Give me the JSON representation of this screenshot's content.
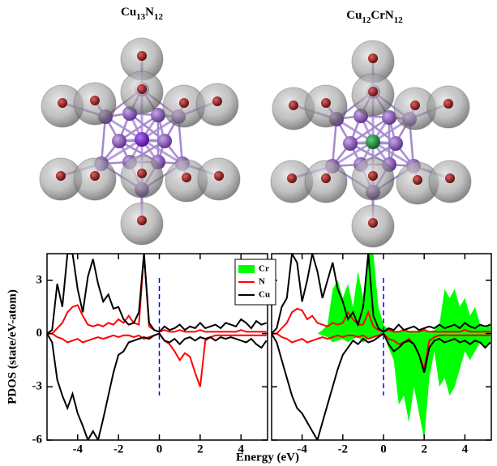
{
  "chart_data": [
    {
      "type": "line",
      "title": "Cu13N12",
      "ylabel": "PDOS (state/eV-atom)",
      "xlabel": "Energy (eV)",
      "xlim": [
        -5.5,
        5.3
      ],
      "ylim": [
        -6,
        4.5
      ],
      "xticks": [
        -4,
        -2,
        0,
        2,
        4
      ],
      "yticks": [
        -6,
        -3,
        0,
        3
      ],
      "fermi_level": 0,
      "x": [
        -5.5,
        -5.25,
        -5,
        -4.75,
        -4.5,
        -4.25,
        -4,
        -3.75,
        -3.5,
        -3.25,
        -3,
        -2.75,
        -2.5,
        -2.25,
        -2,
        -1.75,
        -1.5,
        -1.25,
        -1,
        -0.75,
        -0.5,
        -0.25,
        0,
        0.25,
        0.5,
        0.75,
        1,
        1.25,
        1.5,
        1.75,
        2,
        2.25,
        2.5,
        2.75,
        3,
        3.25,
        3.5,
        3.75,
        4,
        4.25,
        4.5,
        4.75,
        5,
        5.25
      ],
      "series": [
        {
          "name": "N",
          "color": "#ff0000",
          "values": [
            0,
            0,
            0.3,
            0.6,
            1.2,
            1.5,
            1.6,
            1.0,
            0.5,
            0.4,
            0.5,
            0.4,
            0.6,
            0.5,
            0.8,
            0.6,
            1.0,
            0.6,
            0.5,
            4.5,
            0.4,
            0.2,
            0.1,
            0.2,
            0.1,
            0.1,
            0.2,
            0.1,
            0.1,
            0.1,
            0.2,
            0.1,
            0.1,
            0.1,
            0.1,
            0.1,
            0.1,
            0.1,
            0.2,
            0.1,
            0.1,
            0.1,
            0.1,
            0.1
          ],
          "values_down": [
            0,
            0,
            -0.2,
            -0.3,
            -0.5,
            -0.4,
            -0.3,
            -0.5,
            -0.4,
            -0.3,
            -0.2,
            -0.3,
            -0.2,
            -0.1,
            -0.2,
            -0.1,
            -0.1,
            -0.2,
            -0.1,
            -0.3,
            -0.2,
            -0.1,
            0,
            -0.4,
            -0.6,
            -1.0,
            -1.5,
            -1.1,
            -1.3,
            -2.2,
            -3.0,
            -0.4,
            -0.2,
            -0.1,
            -0.1,
            -0.1,
            -0.1,
            -0.1,
            -0.1,
            -0.1,
            -0.1,
            -0.1,
            -0.1,
            -0.1
          ]
        },
        {
          "name": "Cu",
          "color": "#000000",
          "values": [
            0,
            0.2,
            2.8,
            1.5,
            4.5,
            4.5,
            2.5,
            1.2,
            3.2,
            4.2,
            2.8,
            1.8,
            2.2,
            1.4,
            1.5,
            0.8,
            0.5,
            0.6,
            1.2,
            4.5,
            0.6,
            0.2,
            0.1,
            0.4,
            0.2,
            0.3,
            0.5,
            0.2,
            0.4,
            0.3,
            0.6,
            0.3,
            0.4,
            0.5,
            0.3,
            0.6,
            0.5,
            0.4,
            0.8,
            0.6,
            0.3,
            0.7,
            0.5,
            0.6
          ],
          "values_down": [
            0,
            -0.5,
            -2.6,
            -3.5,
            -4.2,
            -3.4,
            -4.5,
            -5.2,
            -6,
            -5.5,
            -6,
            -4.8,
            -3.5,
            -2.2,
            -1.2,
            -1,
            -0.5,
            -0.4,
            -0.3,
            -0.2,
            -0.3,
            -0.1,
            0,
            -0.4,
            -0.5,
            -0.3,
            -0.6,
            -0.3,
            -0.2,
            -0.4,
            -0.2,
            -0.3,
            -0.2,
            -0.4,
            -0.2,
            -0.3,
            -0.2,
            -0.3,
            -0.4,
            -0.5,
            -0.3,
            -0.6,
            -0.8,
            -0.4
          ]
        }
      ]
    },
    {
      "type": "line",
      "title": "Cu12CrN12",
      "legend": "upper left",
      "xlim": [
        -5.5,
        5.3
      ],
      "ylim": [
        -6,
        4.5
      ],
      "xticks": [
        -4,
        -2,
        0,
        2,
        4
      ],
      "yticks": [
        -6,
        -3,
        0,
        3
      ],
      "fermi_level": 0,
      "x": [
        -5.5,
        -5.25,
        -5,
        -4.75,
        -4.5,
        -4.25,
        -4,
        -3.75,
        -3.5,
        -3.25,
        -3,
        -2.75,
        -2.5,
        -2.25,
        -2,
        -1.75,
        -1.5,
        -1.25,
        -1,
        -0.75,
        -0.5,
        -0.25,
        0,
        0.25,
        0.5,
        0.75,
        1,
        1.25,
        1.5,
        1.75,
        2,
        2.25,
        2.5,
        2.75,
        3,
        3.25,
        3.5,
        3.75,
        4,
        4.25,
        4.5,
        4.75,
        5,
        5.25
      ],
      "series": [
        {
          "name": "Cr",
          "color": "#00ff00",
          "fill": true,
          "values": [
            0,
            0,
            0,
            0,
            0,
            0,
            0,
            0,
            0,
            0,
            0.2,
            0.5,
            2.5,
            3.0,
            2.0,
            2.8,
            1.5,
            3.5,
            2.0,
            4.5,
            4.5,
            1.5,
            0.5,
            0.2,
            0.1,
            0.1,
            0.2,
            0.1,
            0.1,
            0.2,
            0.3,
            0.1,
            0.2,
            0.5,
            2.5,
            2.0,
            2.5,
            1.5,
            2.0,
            1.0,
            1.5,
            0.5,
            0.3,
            0.6
          ],
          "values_down": [
            0,
            0,
            0,
            0,
            0,
            0,
            0,
            0,
            0,
            0,
            -0.1,
            -0.2,
            -0.5,
            -0.4,
            -0.3,
            -0.5,
            -0.3,
            -0.2,
            -0.5,
            -0.3,
            -0.2,
            -0.1,
            0,
            -0.8,
            -1.5,
            -4.0,
            -3.5,
            -5.0,
            -3.0,
            -4.5,
            -6,
            -2.5,
            -1.0,
            -3.0,
            -2.5,
            -3.5,
            -3.0,
            -2.0,
            -1.0,
            -1.5,
            -1.0,
            -0.5,
            -0.8,
            -0.5
          ]
        },
        {
          "name": "N",
          "color": "#ff0000",
          "values": [
            0,
            0,
            0.3,
            0.6,
            1.2,
            1.4,
            1.3,
            0.8,
            1.0,
            0.6,
            0.5,
            0.4,
            0.6,
            0.5,
            0.6,
            1.2,
            0.8,
            0.5,
            0.5,
            1.2,
            0.4,
            0.2,
            0.1,
            0.2,
            0.1,
            0.1,
            0.2,
            0.1,
            0.1,
            0.1,
            0.2,
            0.1,
            0.1,
            0.1,
            0.1,
            0.1,
            0.1,
            0.1,
            0.2,
            0.1,
            0.1,
            0.1,
            0.1,
            0.1
          ],
          "values_down": [
            0,
            0,
            -0.2,
            -0.3,
            -0.5,
            -0.4,
            -0.3,
            -0.5,
            -0.4,
            -0.3,
            -0.2,
            -0.3,
            -0.2,
            -0.1,
            -0.2,
            -0.1,
            -0.1,
            -0.2,
            -0.1,
            -0.3,
            -0.2,
            -0.1,
            0,
            -0.3,
            -0.4,
            -0.6,
            -0.5,
            -0.3,
            -0.6,
            -1.2,
            -2.0,
            -0.4,
            -0.2,
            -0.1,
            -0.1,
            -0.1,
            -0.1,
            -0.1,
            -0.1,
            -0.1,
            -0.1,
            -0.1,
            -0.1,
            -0.1
          ]
        },
        {
          "name": "Cu",
          "color": "#000000",
          "values": [
            0,
            0.3,
            1.5,
            2.0,
            4.5,
            4.0,
            1.8,
            3.0,
            4.5,
            3.5,
            2.0,
            3.0,
            4.0,
            2.5,
            1.8,
            0.8,
            1.2,
            0.5,
            1.5,
            4.5,
            1.0,
            0.3,
            0.1,
            0.3,
            0.2,
            0.5,
            0.2,
            0.3,
            0.4,
            0.2,
            0.3,
            0.4,
            0.3,
            0.5,
            0.3,
            0.4,
            0.5,
            0.3,
            0.6,
            0.4,
            0.3,
            0.5,
            0.4,
            0.5
          ],
          "values_down": [
            0,
            -0.5,
            -1.5,
            -2.5,
            -3.5,
            -4.2,
            -4.5,
            -5.0,
            -5.5,
            -6,
            -5.0,
            -4.0,
            -3.0,
            -2.0,
            -1.2,
            -0.8,
            -0.4,
            -0.6,
            -0.3,
            -0.5,
            -0.4,
            -0.2,
            0,
            -0.6,
            -1.0,
            -0.8,
            -0.5,
            -0.4,
            -0.6,
            -1.2,
            -2.2,
            -0.8,
            -0.4,
            -0.3,
            -0.5,
            -0.4,
            -0.3,
            -0.5,
            -0.4,
            -0.6,
            -0.4,
            -0.5,
            -0.8,
            -0.5
          ]
        }
      ]
    }
  ]
}
